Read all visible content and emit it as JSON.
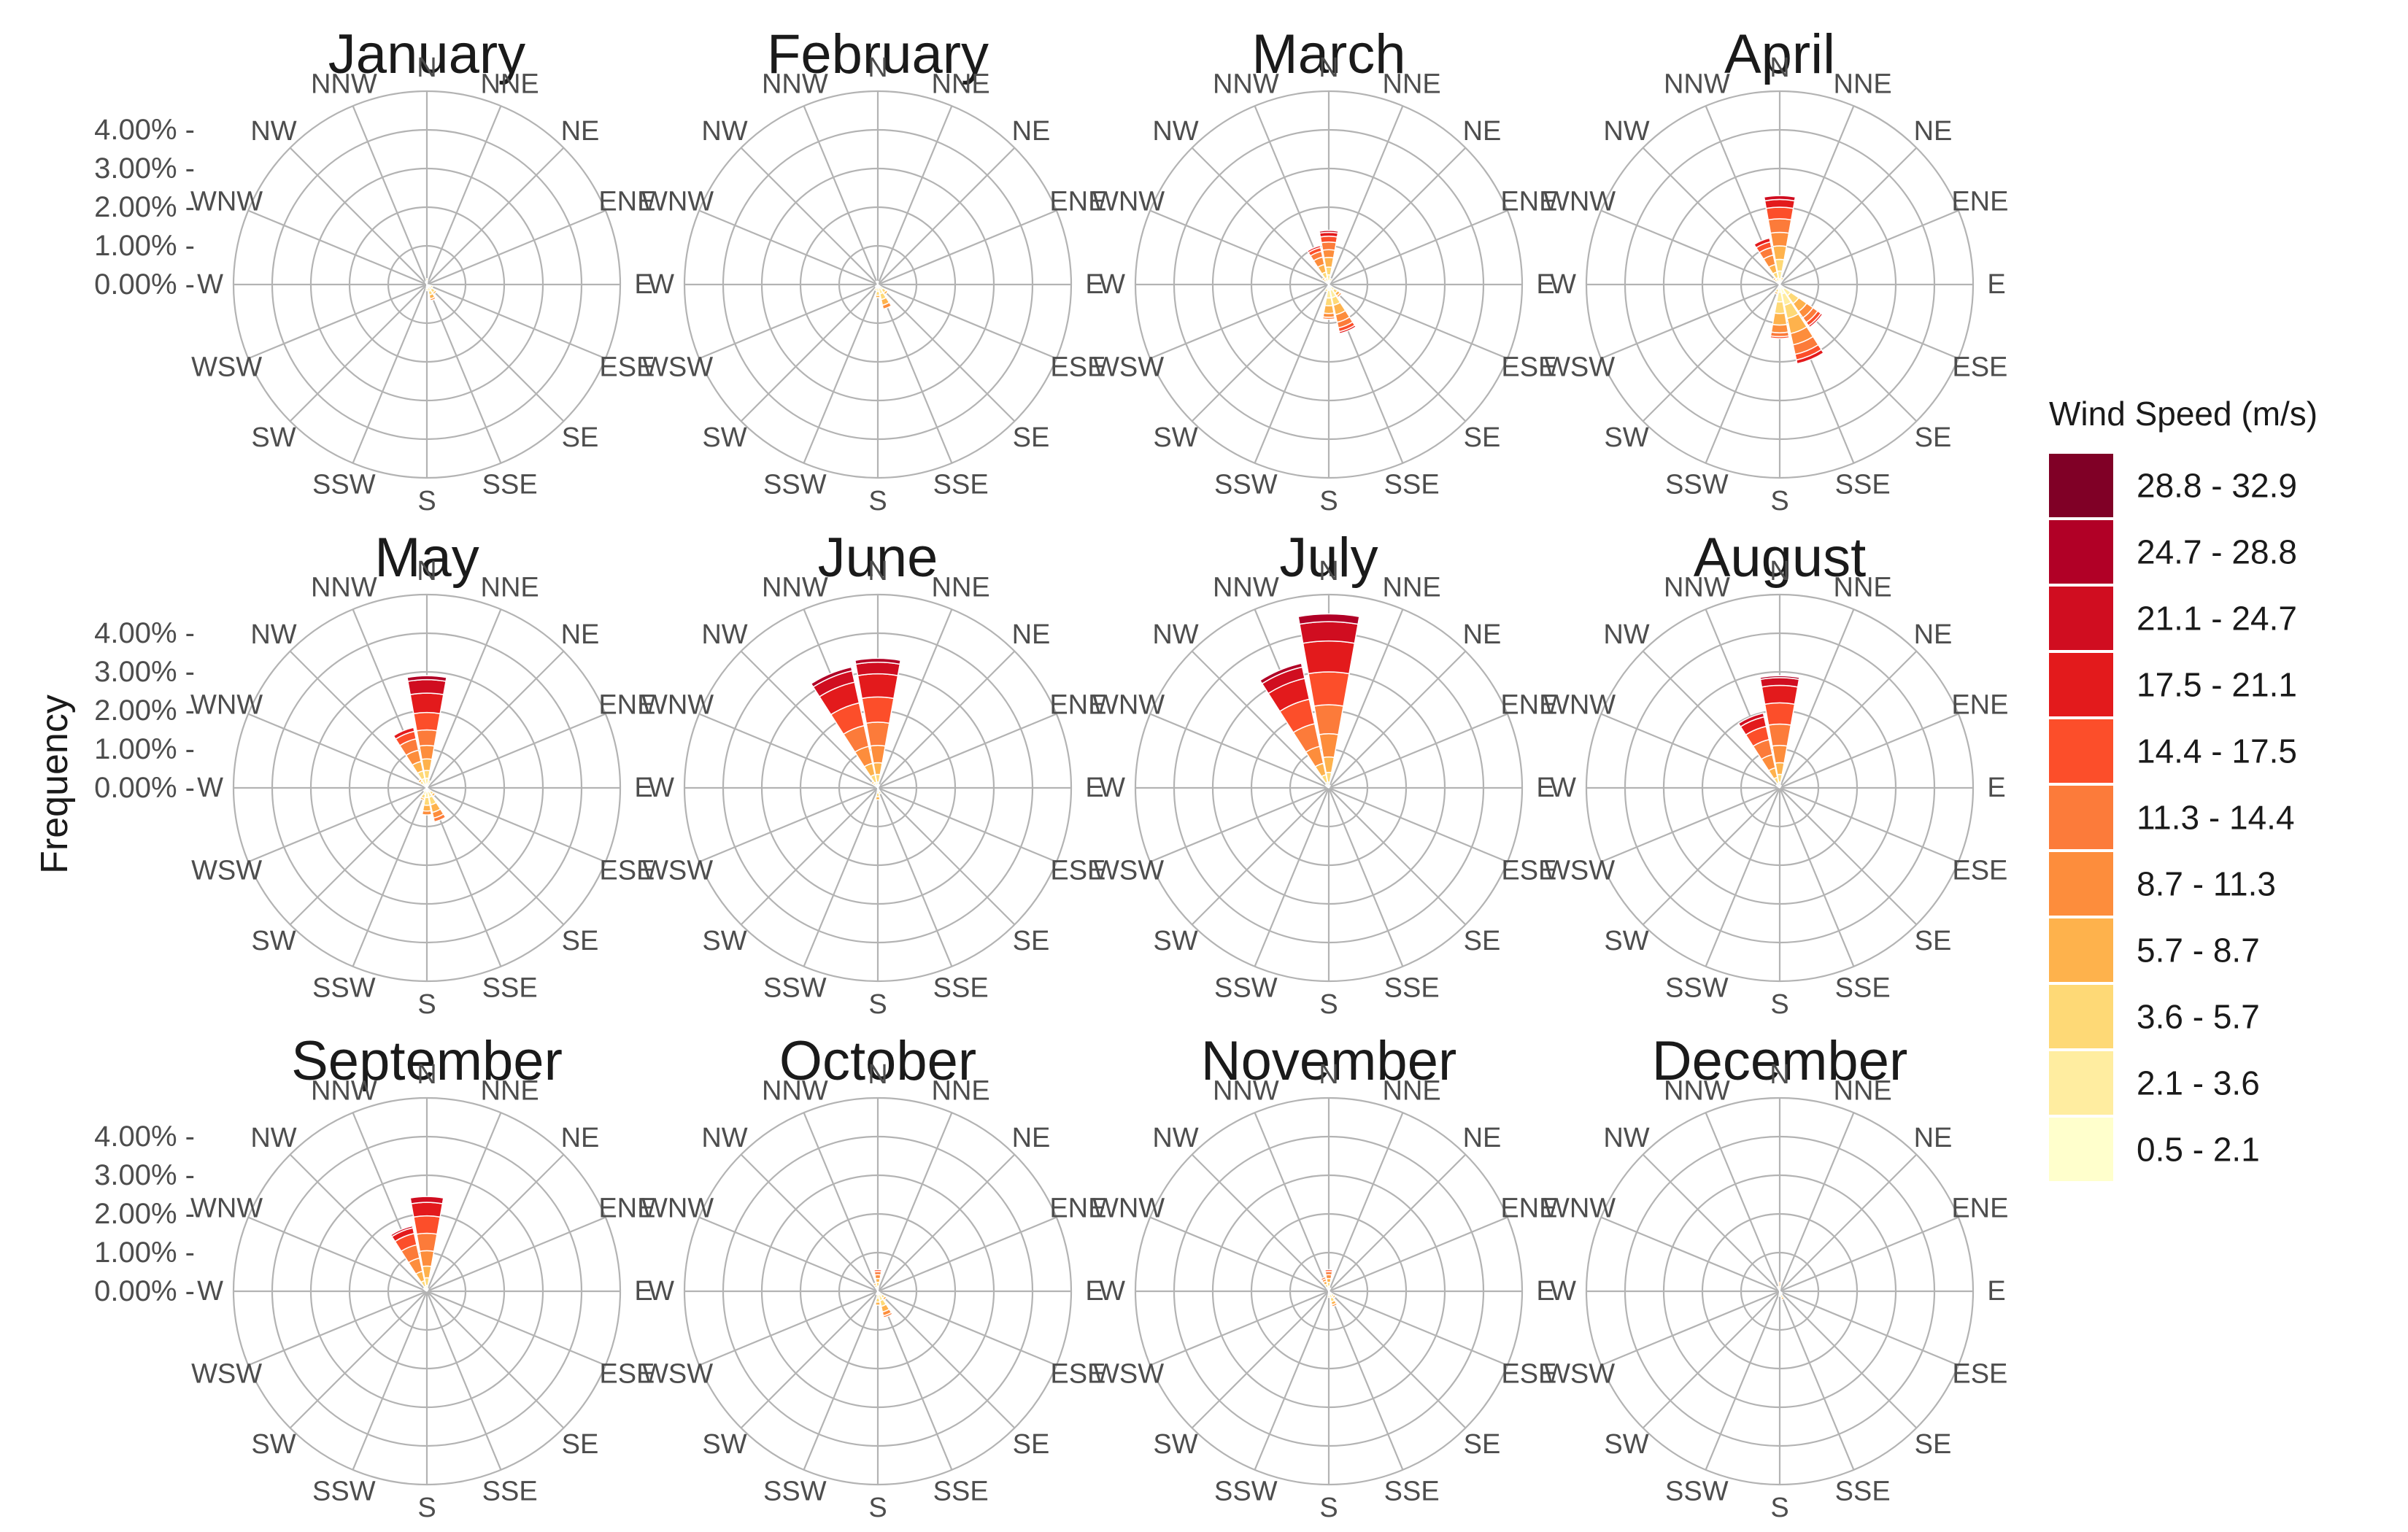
{
  "chart_data": {
    "type": "polar-stacked-bar",
    "ylabel": "Frequency",
    "radial_ticks": [
      "0.00%",
      "1.00%",
      "2.00%",
      "3.00%",
      "4.00%"
    ],
    "radial_max": 5.0,
    "directions": [
      "N",
      "NNE",
      "NE",
      "ENE",
      "E",
      "ESE",
      "SE",
      "SSE",
      "S",
      "SSW",
      "SW",
      "WSW",
      "W",
      "WNW",
      "NW",
      "NNW"
    ],
    "legend": {
      "title": "Wind Speed (m/s)",
      "bins": [
        "0.5 - 2.1",
        "2.1 - 3.6",
        "3.6 - 5.7",
        "5.7 - 8.7",
        "8.7 - 11.3",
        "11.3 - 14.4",
        "14.4 - 17.5",
        "17.5 - 21.1",
        "21.1 - 24.7",
        "24.7 - 28.8",
        "28.8 - 32.9"
      ],
      "colors": [
        "#ffffcc",
        "#ffeda0",
        "#fed976",
        "#feb24c",
        "#fd8d3c",
        "#fc7b3a",
        "#fc4e2a",
        "#e31a1c",
        "#d00d20",
        "#b10026",
        "#800026"
      ]
    },
    "panels": [
      {
        "title": "January",
        "values": {
          "N": [
            0.05,
            0.05,
            0.05
          ],
          "SSE": [
            0.08,
            0.1,
            0.1,
            0.1,
            0.05
          ],
          "SE": [
            0.06,
            0.1,
            0.1,
            0.05
          ],
          "ESE": [
            0.05,
            0.06,
            0.05
          ],
          "S": [
            0.05,
            0.06,
            0.05
          ],
          "NNW": [
            0.04,
            0.04
          ]
        }
      },
      {
        "title": "February",
        "values": {
          "SSE": [
            0.1,
            0.15,
            0.15,
            0.15,
            0.1
          ],
          "SE": [
            0.06,
            0.1,
            0.1,
            0.06
          ],
          "S": [
            0.08,
            0.1,
            0.1,
            0.06
          ],
          "SSW": [
            0.05,
            0.06,
            0.05
          ],
          "SW": [
            0.04,
            0.04
          ],
          "N": [
            0.04,
            0.04
          ],
          "NNW": [
            0.04,
            0.05
          ]
        }
      },
      {
        "title": "March",
        "values": {
          "N": [
            0.1,
            0.15,
            0.2,
            0.25,
            0.2,
            0.2,
            0.15,
            0.1,
            0.05
          ],
          "NNW": [
            0.08,
            0.1,
            0.15,
            0.2,
            0.2,
            0.15,
            0.1,
            0.05
          ],
          "NW": [
            0.05,
            0.06,
            0.06,
            0.05
          ],
          "SSE": [
            0.15,
            0.2,
            0.2,
            0.25,
            0.2,
            0.15,
            0.1,
            0.05
          ],
          "S": [
            0.15,
            0.2,
            0.2,
            0.2,
            0.1,
            0.05
          ],
          "SE": [
            0.08,
            0.1,
            0.1,
            0.08,
            0.05
          ],
          "SSW": [
            0.05,
            0.08,
            0.06
          ],
          "NNE": [
            0.05,
            0.06,
            0.05
          ]
        }
      },
      {
        "title": "April",
        "values": {
          "N": [
            0.15,
            0.2,
            0.3,
            0.35,
            0.35,
            0.35,
            0.3,
            0.2,
            0.1
          ],
          "NNW": [
            0.08,
            0.1,
            0.15,
            0.2,
            0.25,
            0.2,
            0.15,
            0.1
          ],
          "NW": [
            0.05,
            0.06,
            0.06,
            0.05
          ],
          "SSE": [
            0.25,
            0.3,
            0.35,
            0.4,
            0.3,
            0.25,
            0.15,
            0.1
          ],
          "SE": [
            0.15,
            0.2,
            0.25,
            0.25,
            0.2,
            0.15,
            0.1,
            0.05
          ],
          "S": [
            0.2,
            0.25,
            0.3,
            0.3,
            0.2,
            0.1,
            0.05
          ],
          "SSW": [
            0.05,
            0.08,
            0.08,
            0.05
          ],
          "NNE": [
            0.05,
            0.08,
            0.06
          ]
        }
      },
      {
        "title": "May",
        "values": {
          "N": [
            0.1,
            0.15,
            0.2,
            0.3,
            0.35,
            0.4,
            0.45,
            0.5,
            0.35,
            0.1
          ],
          "NNW": [
            0.1,
            0.15,
            0.2,
            0.25,
            0.3,
            0.3,
            0.2,
            0.1
          ],
          "NW": [
            0.06,
            0.08,
            0.08,
            0.06
          ],
          "S": [
            0.1,
            0.15,
            0.2,
            0.15,
            0.1
          ],
          "SSE": [
            0.1,
            0.15,
            0.2,
            0.2,
            0.15,
            0.1
          ],
          "SE": [
            0.05,
            0.08,
            0.08,
            0.06
          ],
          "SSW": [
            0.08,
            0.1,
            0.1,
            0.05
          ],
          "SW": [
            0.05,
            0.06
          ],
          "NNE": [
            0.06,
            0.08,
            0.05
          ]
        }
      },
      {
        "title": "June",
        "values": {
          "N": [
            0.05,
            0.1,
            0.2,
            0.3,
            0.45,
            0.6,
            0.65,
            0.6,
            0.3,
            0.1
          ],
          "NNW": [
            0.05,
            0.1,
            0.2,
            0.3,
            0.45,
            0.55,
            0.6,
            0.55,
            0.3,
            0.1
          ],
          "NW": [
            0.04,
            0.06,
            0.06,
            0.05
          ],
          "S": [
            0.05,
            0.08,
            0.1,
            0.08
          ],
          "SSE": [
            0.04,
            0.06,
            0.06
          ],
          "NNE": [
            0.04,
            0.05
          ]
        }
      },
      {
        "title": "July",
        "values": {
          "N": [
            0.05,
            0.1,
            0.25,
            0.4,
            0.6,
            0.75,
            0.85,
            0.8,
            0.5,
            0.2
          ],
          "NNW": [
            0.05,
            0.1,
            0.2,
            0.3,
            0.45,
            0.6,
            0.65,
            0.55,
            0.3,
            0.1
          ],
          "NW": [
            0.03,
            0.04,
            0.04
          ],
          "NNE": [
            0.03,
            0.04
          ]
        }
      },
      {
        "title": "August",
        "values": {
          "N": [
            0.05,
            0.1,
            0.2,
            0.3,
            0.45,
            0.55,
            0.55,
            0.45,
            0.2,
            0.05
          ],
          "NNW": [
            0.05,
            0.08,
            0.15,
            0.25,
            0.35,
            0.4,
            0.35,
            0.25,
            0.1
          ],
          "NW": [
            0.03,
            0.04,
            0.04
          ],
          "NNE": [
            0.03,
            0.04
          ]
        }
      },
      {
        "title": "September",
        "values": {
          "N": [
            0.05,
            0.1,
            0.2,
            0.3,
            0.4,
            0.45,
            0.45,
            0.35,
            0.15
          ],
          "NNW": [
            0.05,
            0.08,
            0.15,
            0.25,
            0.35,
            0.35,
            0.3,
            0.15,
            0.05
          ],
          "NW": [
            0.03,
            0.04,
            0.04
          ],
          "NNE": [
            0.03,
            0.04
          ]
        }
      },
      {
        "title": "October",
        "values": {
          "N": [
            0.05,
            0.08,
            0.1,
            0.1,
            0.1,
            0.08,
            0.05
          ],
          "SSE": [
            0.1,
            0.15,
            0.15,
            0.15,
            0.1,
            0.05
          ],
          "S": [
            0.08,
            0.1,
            0.1,
            0.08
          ],
          "SE": [
            0.06,
            0.08,
            0.08,
            0.06
          ],
          "NNW": [
            0.05,
            0.06,
            0.06,
            0.05
          ],
          "SSW": [
            0.04,
            0.05
          ]
        }
      },
      {
        "title": "November",
        "values": {
          "N": [
            0.05,
            0.08,
            0.1,
            0.1,
            0.1,
            0.08,
            0.05
          ],
          "NNW": [
            0.05,
            0.06,
            0.08,
            0.08,
            0.06,
            0.05
          ],
          "SSE": [
            0.08,
            0.1,
            0.1,
            0.08,
            0.05
          ],
          "SE": [
            0.05,
            0.06,
            0.06,
            0.05
          ],
          "S": [
            0.05,
            0.06,
            0.05
          ],
          "NNE": [
            0.04,
            0.05
          ]
        }
      },
      {
        "title": "December",
        "values": {
          "N": [
            0.04,
            0.05,
            0.05,
            0.05,
            0.04
          ],
          "NNW": [
            0.04,
            0.05,
            0.04
          ],
          "SSE": [
            0.05,
            0.06,
            0.06,
            0.05
          ],
          "S": [
            0.04,
            0.05,
            0.04
          ],
          "SE": [
            0.04,
            0.04
          ]
        }
      }
    ]
  }
}
